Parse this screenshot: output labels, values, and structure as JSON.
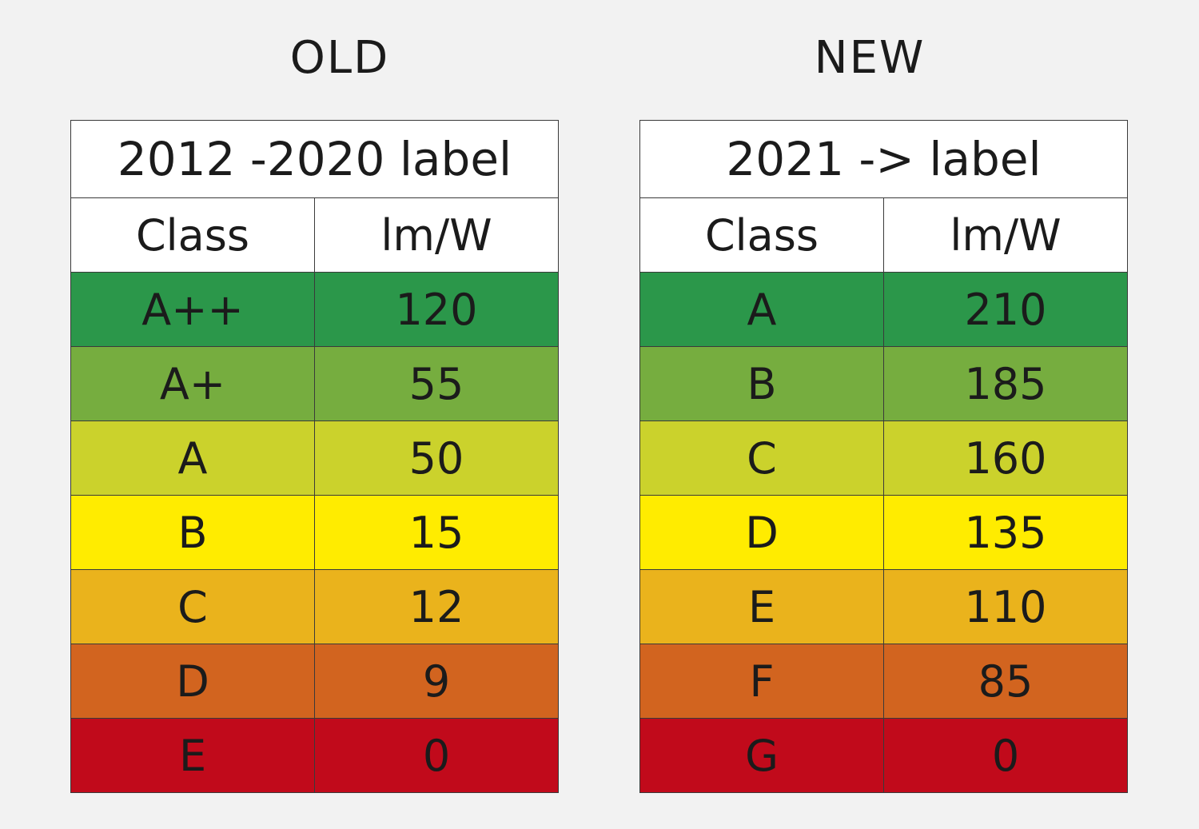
{
  "headings": {
    "old": "OLD",
    "new": "NEW"
  },
  "chart_data": [
    {
      "type": "table",
      "heading": "OLD",
      "title": "2012 -2020 label",
      "columns": [
        "Class",
        "lm/W"
      ],
      "rows": [
        {
          "class": "A++",
          "value": "120",
          "color": "#2b974a"
        },
        {
          "class": "A+",
          "value": "55",
          "color": "#76ad3f"
        },
        {
          "class": "A",
          "value": "50",
          "color": "#cbd22c"
        },
        {
          "class": "B",
          "value": "15",
          "color": "#ffec00"
        },
        {
          "class": "C",
          "value": "12",
          "color": "#eab31c"
        },
        {
          "class": "D",
          "value": "9",
          "color": "#d2641f"
        },
        {
          "class": "E",
          "value": "0",
          "color": "#c10a1b"
        }
      ]
    },
    {
      "type": "table",
      "heading": "NEW",
      "title": "2021 -> label",
      "columns": [
        "Class",
        "lm/W"
      ],
      "rows": [
        {
          "class": "A",
          "value": "210",
          "color": "#2b974a"
        },
        {
          "class": "B",
          "value": "185",
          "color": "#76ad3f"
        },
        {
          "class": "C",
          "value": "160",
          "color": "#cbd22c"
        },
        {
          "class": "D",
          "value": "135",
          "color": "#ffec00"
        },
        {
          "class": "E",
          "value": "110",
          "color": "#eab31c"
        },
        {
          "class": "F",
          "value": "85",
          "color": "#d2641f"
        },
        {
          "class": "G",
          "value": "0",
          "color": "#c10a1b"
        }
      ]
    }
  ]
}
